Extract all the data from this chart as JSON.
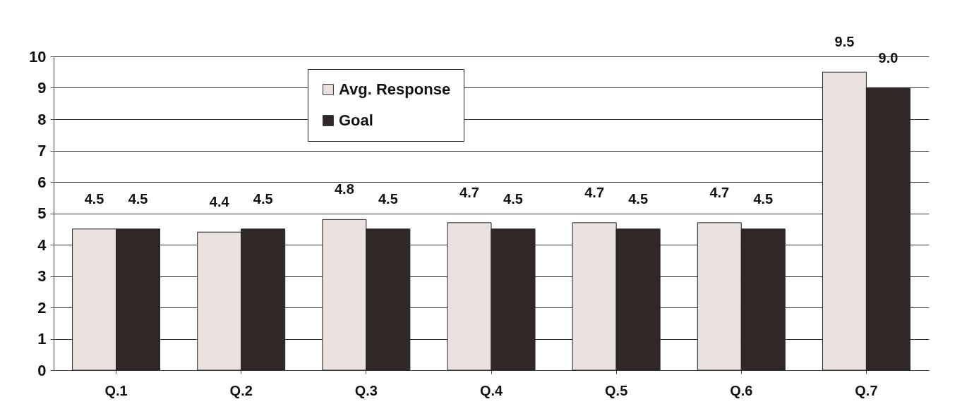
{
  "chart_data": {
    "type": "bar",
    "categories": [
      "Q.1",
      "Q.2",
      "Q.3",
      "Q.4",
      "Q.5",
      "Q.6",
      "Q.7"
    ],
    "series": [
      {
        "name": "Avg. Response",
        "color": "#e9e2de",
        "values": [
          4.5,
          4.4,
          4.8,
          4.7,
          4.7,
          4.7,
          9.5
        ],
        "value_labels": [
          "4.5",
          "4.4",
          "4.8",
          "4.7",
          "4.7",
          "4.7",
          "9.5"
        ]
      },
      {
        "name": "Goal",
        "color": "#2f2826",
        "values": [
          4.5,
          4.5,
          4.5,
          4.5,
          4.5,
          4.5,
          9.0
        ],
        "value_labels": [
          "4.5",
          "4.5",
          "4.5",
          "4.5",
          "4.5",
          "4.5",
          "9.0"
        ]
      }
    ],
    "ylim": [
      0,
      10
    ],
    "yticks": [
      0,
      1,
      2,
      3,
      4,
      5,
      6,
      7,
      8,
      9,
      10
    ],
    "grid": "y",
    "legend": "top"
  }
}
